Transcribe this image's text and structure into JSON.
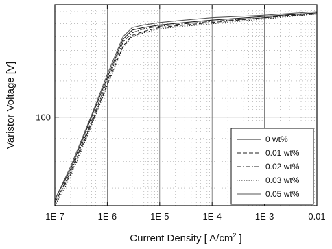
{
  "chart_data": {
    "type": "line",
    "xlabel_pre": "Current Density [ A/cm",
    "xlabel_sup": "2",
    "xlabel_post": " ]",
    "ylabel": "Varistor Voltage [V]",
    "x_scale": "log",
    "y_scale": "log",
    "xlim": [
      1e-07,
      0.01
    ],
    "ylim": [
      64,
      176
    ],
    "x_ticks": [
      {
        "value": 1e-07,
        "label": "1E-7"
      },
      {
        "value": 1e-06,
        "label": "1E-6"
      },
      {
        "value": 1e-05,
        "label": "1E-5"
      },
      {
        "value": 0.0001,
        "label": "1E-4"
      },
      {
        "value": 0.001,
        "label": "1E-3"
      },
      {
        "value": 0.01,
        "label": "0.01"
      }
    ],
    "y_ticks": [
      {
        "value": 100,
        "label": "100"
      }
    ],
    "grid": true,
    "legend_position": "lower-right",
    "series": [
      {
        "name": "0 wt%",
        "color": "#222222",
        "dash": "",
        "x": [
          1e-07,
          2e-07,
          5e-07,
          1e-06,
          2e-06,
          3e-06,
          5e-06,
          1e-05,
          3e-05,
          0.0001,
          0.001,
          0.01
        ],
        "y": [
          66,
          77,
          100,
          122,
          148,
          155,
          157,
          159,
          161,
          163,
          166,
          169
        ]
      },
      {
        "name": "0.01 wt%",
        "color": "#222222",
        "dash": "6,3",
        "x": [
          1e-07,
          2e-07,
          5e-07,
          1e-06,
          2e-06,
          3e-06,
          5e-06,
          1e-05,
          3e-05,
          0.0001,
          0.001,
          0.01
        ],
        "y": [
          65,
          75,
          97,
          118,
          143,
          151,
          154,
          157,
          159,
          161,
          165,
          169
        ]
      },
      {
        "name": "0.02 wt%",
        "color": "#222222",
        "dash": "7,2,2,2",
        "x": [
          1e-07,
          2e-07,
          5e-07,
          1e-06,
          2e-06,
          3e-06,
          5e-06,
          1e-05,
          3e-05,
          0.0001,
          0.001,
          0.01
        ],
        "y": [
          65,
          76,
          98,
          120,
          146,
          153,
          156,
          158,
          160,
          162,
          165,
          168
        ]
      },
      {
        "name": "0.03 wt%",
        "color": "#222222",
        "dash": "1.5,2",
        "x": [
          1e-07,
          2e-07,
          5e-07,
          1e-06,
          2e-06,
          3e-06,
          5e-06,
          1e-05,
          3e-05,
          0.0001,
          0.001,
          0.01
        ],
        "y": [
          64,
          74,
          96,
          117,
          142,
          150,
          153,
          156,
          158,
          160,
          164,
          168
        ]
      },
      {
        "name": "0.05 wt%",
        "color": "#555555",
        "dash": "",
        "x": [
          1e-07,
          2e-07,
          5e-07,
          1e-06,
          2e-06,
          3e-06,
          5e-06,
          1e-05,
          3e-05,
          0.0001,
          0.001,
          0.01
        ],
        "y": [
          66,
          78,
          101,
          124,
          150,
          157,
          159,
          161,
          163,
          165,
          167,
          170
        ]
      }
    ]
  }
}
